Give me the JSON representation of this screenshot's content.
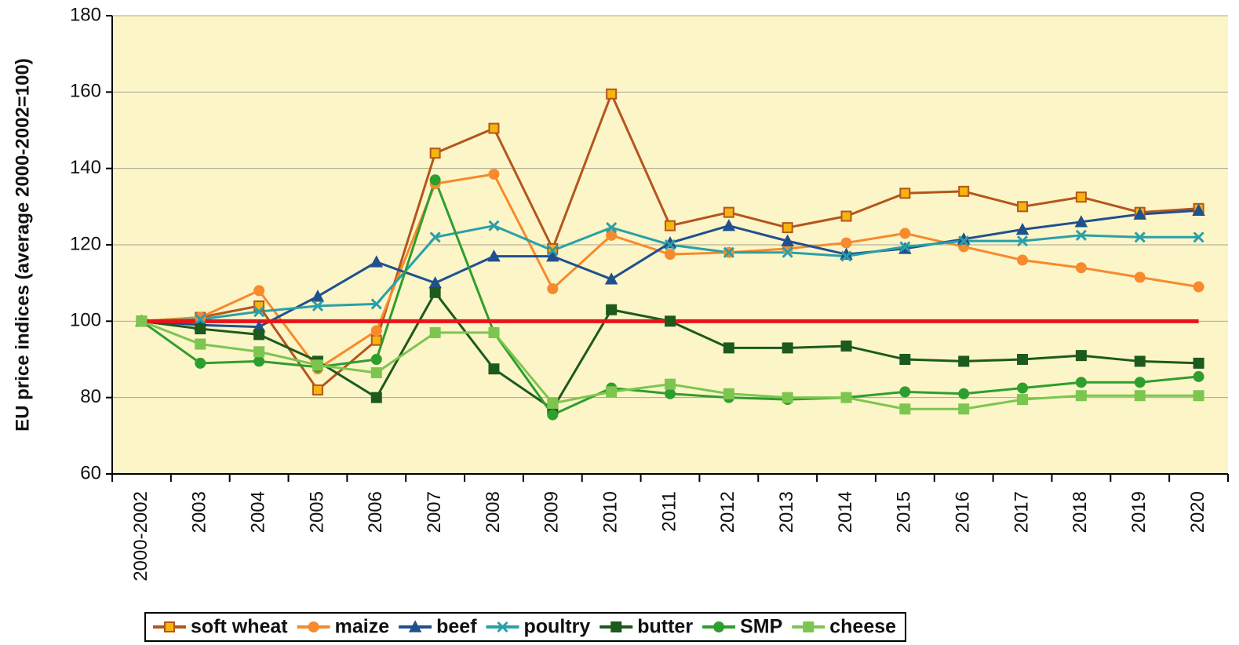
{
  "chart_data": {
    "type": "line",
    "ylabel": "EU price indices (average 2000-2002=100)",
    "categories": [
      "2000-2002",
      "2003",
      "2004",
      "2005",
      "2006",
      "2007",
      "2008",
      "2009",
      "2010",
      "2011",
      "2012",
      "2013",
      "2014",
      "2015",
      "2016",
      "2017",
      "2018",
      "2019",
      "2020"
    ],
    "ylim": [
      60,
      180
    ],
    "yticks": [
      60,
      80,
      100,
      120,
      140,
      160,
      180
    ],
    "grid": true,
    "background": "#fbf5c8",
    "legend": "bottom",
    "reference_line": {
      "value": 100,
      "color": "#e8141a"
    },
    "series": [
      {
        "name": "soft wheat",
        "color": "#b4561c",
        "marker": "square",
        "marker_fill": "#f6b40e",
        "values": [
          100,
          101,
          104,
          82,
          95,
          144,
          150.5,
          119,
          159.5,
          125,
          128.5,
          124.5,
          127.5,
          133.5,
          134,
          130,
          132.5,
          128.5,
          129.5
        ]
      },
      {
        "name": "maize",
        "color": "#f78a2c",
        "marker": "circle",
        "marker_fill": "#f78a2c",
        "values": [
          100,
          101,
          108,
          87.5,
          97.5,
          136,
          138.5,
          108.5,
          122.5,
          117.5,
          118,
          119,
          120.5,
          123,
          119.5,
          116,
          114,
          111.5,
          109
        ]
      },
      {
        "name": "beef",
        "color": "#21508e",
        "marker": "triangle",
        "marker_fill": "#21508e",
        "values": [
          100,
          99,
          98.5,
          106.5,
          115.5,
          110,
          117,
          117,
          111,
          120.5,
          125,
          121,
          117.5,
          119,
          121.5,
          124,
          126,
          128,
          129
        ]
      },
      {
        "name": "poultry",
        "color": "#2aa0a8",
        "marker": "cross",
        "marker_fill": "#2aa0a8",
        "values": [
          100,
          100.5,
          102.5,
          104,
          104.5,
          122,
          125,
          118.5,
          124.5,
          120,
          118,
          118,
          117,
          119.5,
          121,
          121,
          122.5,
          122,
          122
        ]
      },
      {
        "name": "butter",
        "color": "#1d5a1d",
        "marker": "square",
        "marker_fill": "#1d5a1d",
        "values": [
          100,
          98,
          96.5,
          89.5,
          80,
          107.5,
          87.5,
          77,
          103,
          100,
          93,
          93,
          93.5,
          90,
          89.5,
          90,
          91,
          89.5,
          89
        ]
      },
      {
        "name": "SMP",
        "color": "#2e9e2e",
        "marker": "circle",
        "marker_fill": "#2e9e2e",
        "values": [
          100,
          89,
          89.5,
          88,
          90,
          137,
          97,
          75.5,
          82.5,
          81,
          80,
          79.5,
          80,
          81.5,
          81,
          82.5,
          84,
          84,
          85.5
        ]
      },
      {
        "name": "cheese",
        "color": "#7cc650",
        "marker": "square",
        "marker_fill": "#7cc650",
        "values": [
          100,
          94,
          92,
          88.5,
          86.5,
          97,
          97,
          78.5,
          81.5,
          83.5,
          81,
          80,
          80,
          77,
          77,
          79.5,
          80.5,
          80.5,
          80.5
        ]
      }
    ]
  }
}
